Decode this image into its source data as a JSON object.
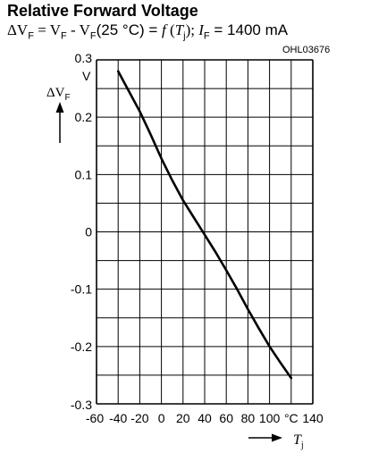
{
  "chart_data": {
    "type": "line",
    "title": "Relative Forward Voltage",
    "subtitle": {
      "p1": "ΔV",
      "s1": "F",
      "p2": " = V",
      "s2": "F",
      "p3": " - V",
      "s3": "F",
      "p4": "(25 °C) = ",
      "f": "f",
      "p5": " (",
      "t": "T",
      "s4": "j",
      "p6": "); ",
      "i": "I",
      "s5": "F",
      "p7": " = 1400 mA"
    },
    "figure_code": "OHL03676",
    "ylabel": {
      "main": "ΔV",
      "sub": "F"
    },
    "yunit": "V",
    "xlabel": {
      "main": "T",
      "sub": "j"
    },
    "xunit": "°C",
    "xlim": [
      -60,
      140
    ],
    "ylim": [
      -0.3,
      0.3
    ],
    "x_ticks": [
      "-60",
      "-40",
      "-20",
      "0",
      "20",
      "40",
      "60",
      "80",
      "100",
      "140"
    ],
    "y_ticks": [
      "0.3",
      "0.2",
      "0.1",
      "0",
      "-0.1",
      "-0.2",
      "-0.3"
    ],
    "grid": true,
    "series": [
      {
        "x": [
          -40,
          -30,
          -20,
          -10,
          0,
          10,
          20,
          30,
          40,
          50,
          60,
          70,
          80,
          90,
          100,
          110,
          120
        ],
        "values": [
          0.28,
          0.245,
          0.21,
          0.17,
          0.128,
          0.09,
          0.055,
          0.025,
          -0.005,
          -0.035,
          -0.067,
          -0.1,
          -0.135,
          -0.168,
          -0.2,
          -0.228,
          -0.255
        ]
      }
    ]
  }
}
